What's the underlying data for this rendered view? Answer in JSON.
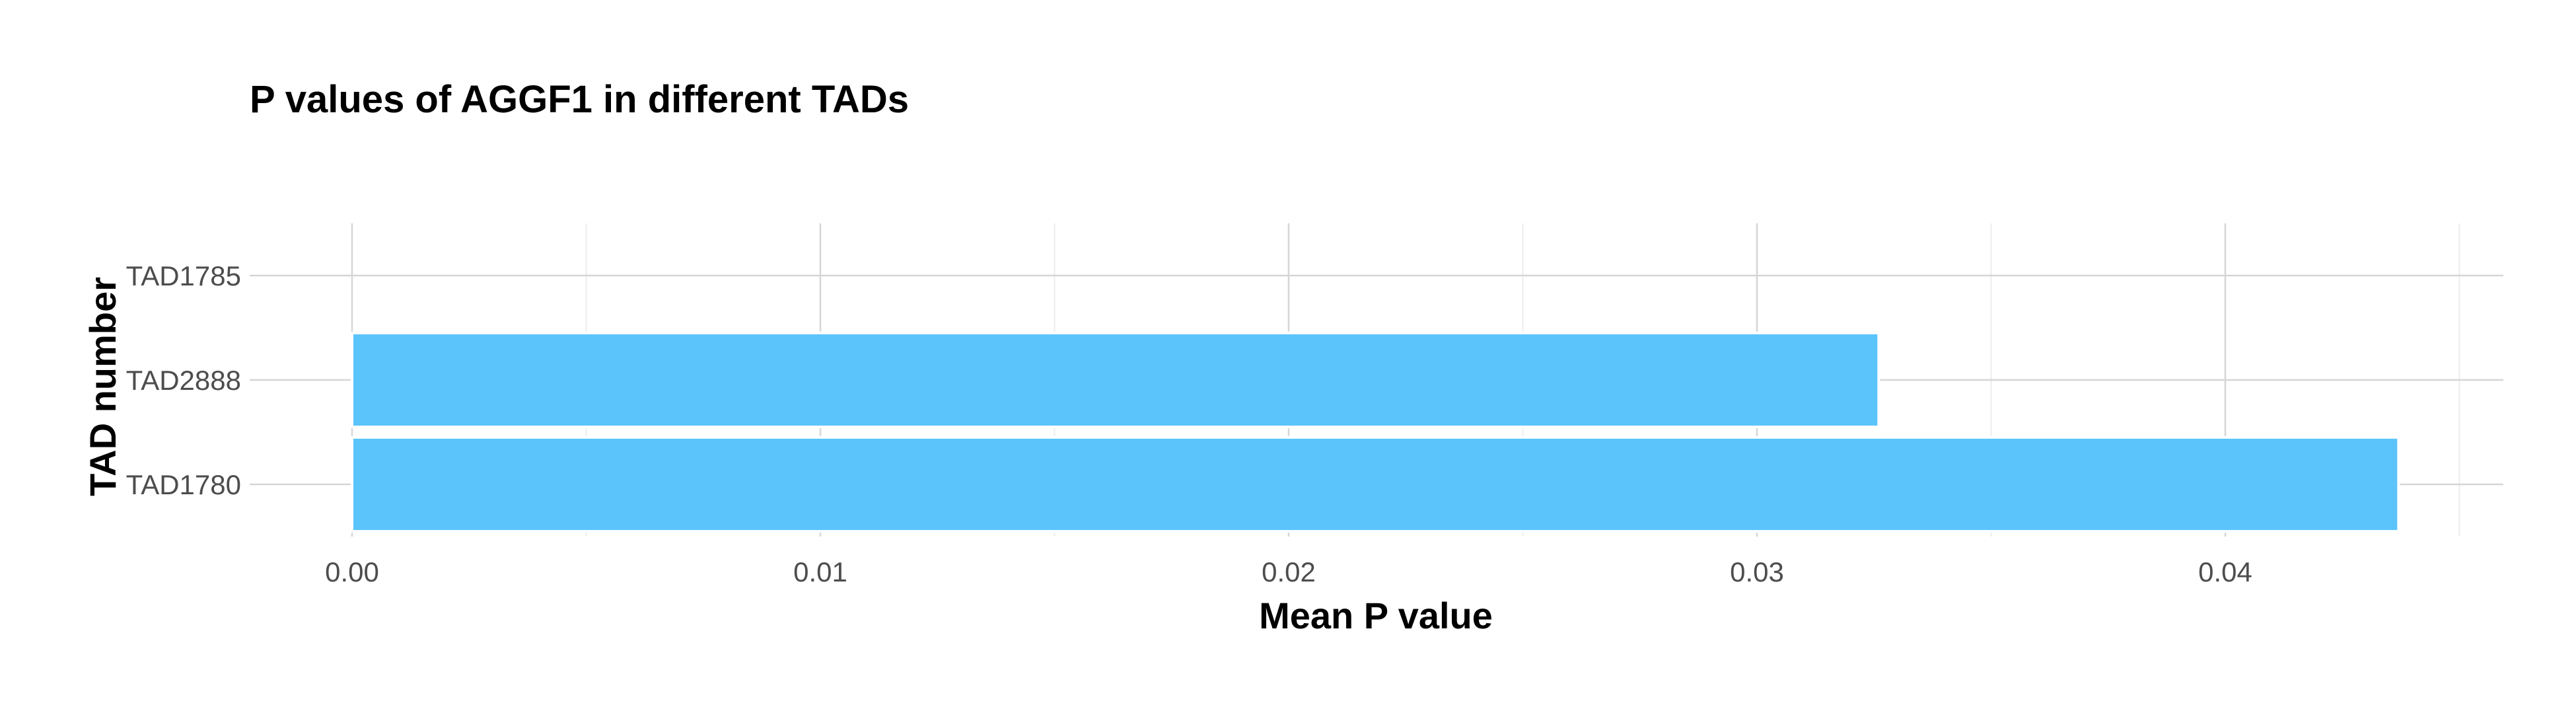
{
  "chart_data": {
    "type": "bar",
    "orientation": "horizontal",
    "title": "P values of AGGF1 in different TADs",
    "xlabel": "Mean P value",
    "ylabel": "TAD number",
    "categories": [
      "TAD1785",
      "TAD2888",
      "TAD1780"
    ],
    "values": [
      0.0,
      0.0326,
      0.0437
    ],
    "xlim": [
      0.0,
      0.0459
    ],
    "x_ticks": [
      0.0,
      0.01,
      0.02,
      0.03,
      0.04
    ],
    "x_tick_labels": [
      "0.00",
      "0.01",
      "0.02",
      "0.03",
      "0.04"
    ],
    "grid": true,
    "legend": "none",
    "colors": {
      "bar_fill": "#5bc4fb",
      "bar_outline": "#ffffff",
      "grid_major": "#d6d6d6",
      "grid_minor": "#ececec",
      "background": "#ffffff"
    }
  }
}
